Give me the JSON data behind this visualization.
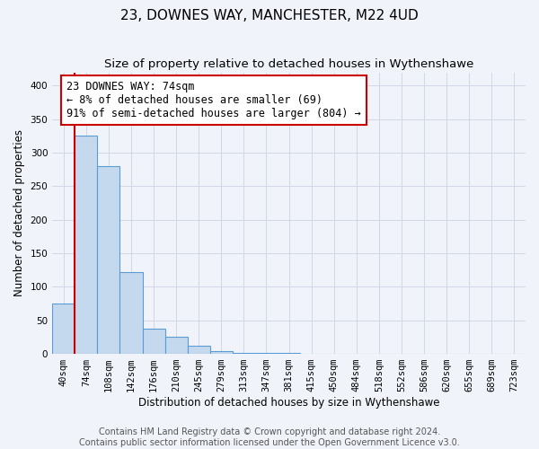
{
  "title": "23, DOWNES WAY, MANCHESTER, M22 4UD",
  "subtitle": "Size of property relative to detached houses in Wythenshawe",
  "xlabel": "Distribution of detached houses by size in Wythenshawe",
  "ylabel": "Number of detached properties",
  "footnote1": "Contains HM Land Registry data © Crown copyright and database right 2024.",
  "footnote2": "Contains public sector information licensed under the Open Government Licence v3.0.",
  "bins": [
    "40sqm",
    "74sqm",
    "108sqm",
    "142sqm",
    "176sqm",
    "210sqm",
    "245sqm",
    "279sqm",
    "313sqm",
    "347sqm",
    "381sqm",
    "415sqm",
    "450sqm",
    "484sqm",
    "518sqm",
    "552sqm",
    "586sqm",
    "620sqm",
    "655sqm",
    "689sqm",
    "723sqm"
  ],
  "values": [
    75,
    325,
    280,
    122,
    38,
    25,
    12,
    4,
    2,
    1,
    1,
    0,
    0,
    0,
    0,
    0,
    0,
    0,
    0,
    0,
    0
  ],
  "bar_color": "#c5d9ee",
  "bar_edge_color": "#5b9bd5",
  "red_line_x": 0.5,
  "property_label": "23 DOWNES WAY: 74sqm",
  "annotation_line1": "← 8% of detached houses are smaller (69)",
  "annotation_line2": "91% of semi-detached houses are larger (804) →",
  "annotation_box_color": "#ffffff",
  "annotation_box_edge": "#cc0000",
  "red_line_color": "#cc0000",
  "ylim": [
    0,
    420
  ],
  "yticks": [
    0,
    50,
    100,
    150,
    200,
    250,
    300,
    350,
    400
  ],
  "background_color": "#f0f4fa",
  "grid_color": "#d0d8e8",
  "title_fontsize": 11,
  "subtitle_fontsize": 9.5,
  "axis_label_fontsize": 8.5,
  "tick_fontsize": 7.5,
  "annotation_fontsize": 8.5,
  "footnote_fontsize": 7
}
